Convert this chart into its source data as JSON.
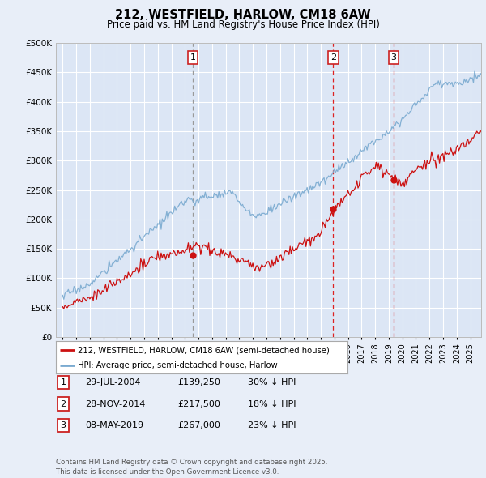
{
  "title": "212, WESTFIELD, HARLOW, CM18 6AW",
  "subtitle": "Price paid vs. HM Land Registry's House Price Index (HPI)",
  "background_color": "#e8eef8",
  "plot_bg_color": "#dce6f5",
  "grid_color": "#ffffff",
  "hpi_color": "#7aaad0",
  "price_color": "#cc1111",
  "vline1_color": "#999999",
  "vline23_color": "#dd2222",
  "sale_markers": [
    {
      "date_num": 2004.57,
      "price": 139250,
      "label": "1",
      "vline_style": "gray"
    },
    {
      "date_num": 2014.91,
      "price": 217500,
      "label": "2",
      "vline_style": "red"
    },
    {
      "date_num": 2019.35,
      "price": 267000,
      "label": "3",
      "vline_style": "red"
    }
  ],
  "sale_info": [
    {
      "num": "1",
      "date": "29-JUL-2004",
      "price": "£139,250",
      "pct": "30% ↓ HPI"
    },
    {
      "num": "2",
      "date": "28-NOV-2014",
      "price": "£217,500",
      "pct": "18% ↓ HPI"
    },
    {
      "num": "3",
      "date": "08-MAY-2019",
      "price": "£267,000",
      "pct": "23% ↓ HPI"
    }
  ],
  "legend_entries": [
    "212, WESTFIELD, HARLOW, CM18 6AW (semi-detached house)",
    "HPI: Average price, semi-detached house, Harlow"
  ],
  "footer": "Contains HM Land Registry data © Crown copyright and database right 2025.\nThis data is licensed under the Open Government Licence v3.0.",
  "ylim": [
    0,
    500000
  ],
  "yticks": [
    0,
    50000,
    100000,
    150000,
    200000,
    250000,
    300000,
    350000,
    400000,
    450000,
    500000
  ],
  "xlim_start": 1994.5,
  "xlim_end": 2025.8
}
